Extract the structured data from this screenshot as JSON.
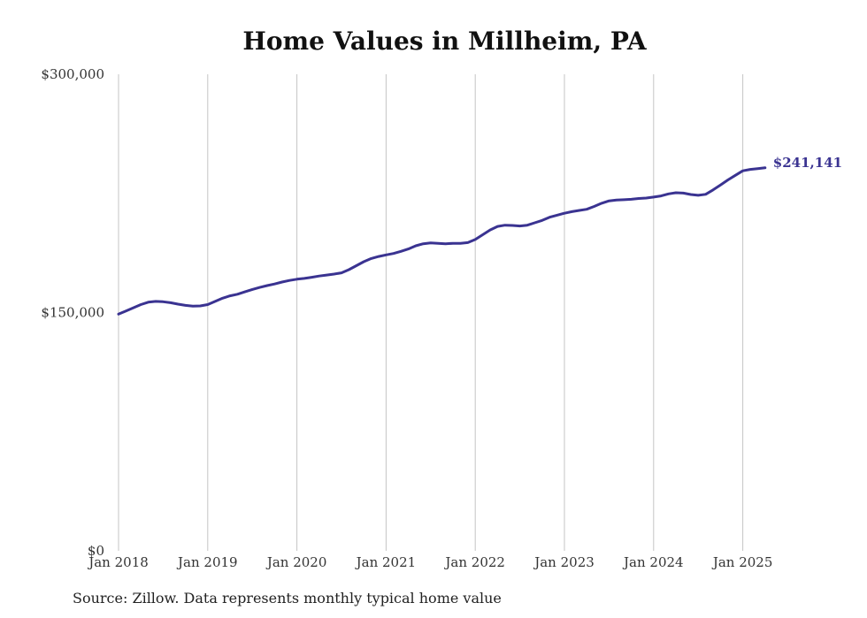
{
  "chart_data": {
    "type": "line",
    "title": "Home Values in Millheim, PA",
    "source_note": "Source: Zillow. Data represents monthly typical home value",
    "ylim": [
      0,
      300000
    ],
    "y_ticks": [
      {
        "value": 0,
        "label": "$0"
      },
      {
        "value": 150000,
        "label": "$150,000"
      },
      {
        "value": 300000,
        "label": "$300,000"
      }
    ],
    "x_ticks": [
      {
        "value": "2018-01",
        "label": "Jan 2018"
      },
      {
        "value": "2019-01",
        "label": "Jan 2019"
      },
      {
        "value": "2020-01",
        "label": "Jan 2020"
      },
      {
        "value": "2021-01",
        "label": "Jan 2021"
      },
      {
        "value": "2022-01",
        "label": "Jan 2022"
      },
      {
        "value": "2023-01",
        "label": "Jan 2023"
      },
      {
        "value": "2024-01",
        "label": "Jan 2024"
      },
      {
        "value": "2025-01",
        "label": "Jan 2025"
      }
    ],
    "grid": "vertical",
    "line_color": "#3a3391",
    "end_label": "$241,141",
    "series": [
      {
        "x": [
          "2018-01",
          "2018-02",
          "2018-03",
          "2018-04",
          "2018-05",
          "2018-06",
          "2018-07",
          "2018-08",
          "2018-09",
          "2018-10",
          "2018-11",
          "2018-12",
          "2019-01",
          "2019-02",
          "2019-03",
          "2019-04",
          "2019-05",
          "2019-06",
          "2019-07",
          "2019-08",
          "2019-09",
          "2019-10",
          "2019-11",
          "2019-12",
          "2020-01",
          "2020-02",
          "2020-03",
          "2020-04",
          "2020-05",
          "2020-06",
          "2020-07",
          "2020-08",
          "2020-09",
          "2020-10",
          "2020-11",
          "2020-12",
          "2021-01",
          "2021-02",
          "2021-03",
          "2021-04",
          "2021-05",
          "2021-06",
          "2021-07",
          "2021-08",
          "2021-09",
          "2021-10",
          "2021-11",
          "2021-12",
          "2022-01",
          "2022-02",
          "2022-03",
          "2022-04",
          "2022-05",
          "2022-06",
          "2022-07",
          "2022-08",
          "2022-09",
          "2022-10",
          "2022-11",
          "2022-12",
          "2023-01",
          "2023-02",
          "2023-03",
          "2023-04",
          "2023-05",
          "2023-06",
          "2023-07",
          "2023-08",
          "2023-09",
          "2023-10",
          "2023-11",
          "2023-12",
          "2024-01",
          "2024-02",
          "2024-03",
          "2024-04",
          "2024-05",
          "2024-06",
          "2024-07",
          "2024-08",
          "2024-09",
          "2024-10",
          "2024-11",
          "2024-12",
          "2025-01",
          "2025-02",
          "2025-03",
          "2025-04"
        ],
        "values": [
          149000,
          151000,
          153000,
          155000,
          156500,
          157000,
          156800,
          156200,
          155300,
          154500,
          154000,
          154200,
          155000,
          157000,
          159000,
          160500,
          161500,
          163000,
          164500,
          165800,
          167000,
          168000,
          169200,
          170200,
          171000,
          171500,
          172200,
          173000,
          173600,
          174200,
          175000,
          177000,
          179500,
          182000,
          184000,
          185300,
          186300,
          187200,
          188500,
          190000,
          192000,
          193300,
          193800,
          193500,
          193300,
          193600,
          193500,
          194000,
          196000,
          199000,
          202000,
          204200,
          205000,
          204800,
          204500,
          205000,
          206500,
          208000,
          210000,
          211300,
          212500,
          213500,
          214300,
          215000,
          216800,
          218800,
          220300,
          220800,
          221000,
          221300,
          221800,
          222100,
          222700,
          223400,
          224700,
          225400,
          225200,
          224300,
          223800,
          224400,
          227200,
          230300,
          233500,
          236400,
          239200,
          240100,
          240600,
          241141
        ]
      }
    ]
  }
}
